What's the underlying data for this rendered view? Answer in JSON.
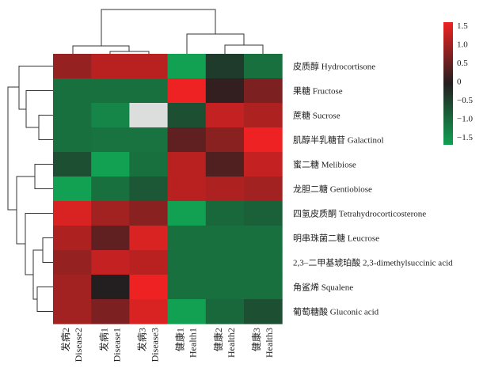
{
  "chart_data": {
    "type": "heatmap",
    "title": "",
    "columns": [
      {
        "cn": "发病2",
        "en": "Disease2"
      },
      {
        "cn": "发病1",
        "en": "Disease1"
      },
      {
        "cn": "发病3",
        "en": "Disease3"
      },
      {
        "cn": "健康1",
        "en": "Health1"
      },
      {
        "cn": "健康2",
        "en": "Health2"
      },
      {
        "cn": "健康3",
        "en": "Health3"
      }
    ],
    "rows": [
      "皮质醇 Hydrocortisone",
      "果糖 Fructose",
      "蔗糖 Sucrose",
      "肌醇半乳糖苷 Galactinol",
      "蜜二糖 Melibiose",
      "龙胆二糖 Gentiobiose",
      "四氢皮质酮 Tetrahydrocorticosterone",
      "明串珠菌二糖 Leucrose",
      "2,3–二甲基琥珀酸 2,3-dimethylsuccinic acid",
      "角鲨烯 Squalene",
      "葡萄糖酸 Gluconic acid"
    ],
    "values": [
      [
        0.7,
        1.0,
        1.0,
        -1.5,
        -0.2,
        -0.8
      ],
      [
        -0.8,
        -0.8,
        -0.8,
        1.7,
        0.05,
        0.5
      ],
      [
        -0.8,
        -1.1,
        null,
        -0.4,
        1.1,
        0.9
      ],
      [
        -0.8,
        -0.85,
        -0.85,
        0.3,
        0.6,
        1.5
      ],
      [
        -0.4,
        -1.5,
        -0.8,
        1.0,
        0.2,
        1.1
      ],
      [
        -1.5,
        -0.8,
        -0.5,
        1.0,
        0.9,
        0.8
      ],
      [
        1.3,
        0.8,
        0.6,
        -1.5,
        -0.7,
        -0.6
      ],
      [
        0.9,
        0.3,
        1.3,
        -0.8,
        -0.8,
        -0.8
      ],
      [
        0.7,
        1.1,
        1.0,
        -0.8,
        -0.8,
        -0.8
      ],
      [
        0.8,
        0.0,
        1.5,
        -0.8,
        -0.8,
        -0.8
      ],
      [
        0.8,
        0.5,
        1.3,
        -1.5,
        -0.7,
        -0.4
      ]
    ],
    "colorbar": {
      "range": [
        -1.5,
        1.5
      ],
      "ticks": [
        "1.5",
        "1.0",
        "0.5",
        "0",
        "−0.5",
        "−1.0",
        "−1.5"
      ],
      "colors": {
        "low": "#12a052",
        "mid": "#231f20",
        "high": "#ee2222",
        "missing": "#dcdddd"
      }
    },
    "dendrograms": {
      "top": true,
      "left": true
    }
  }
}
